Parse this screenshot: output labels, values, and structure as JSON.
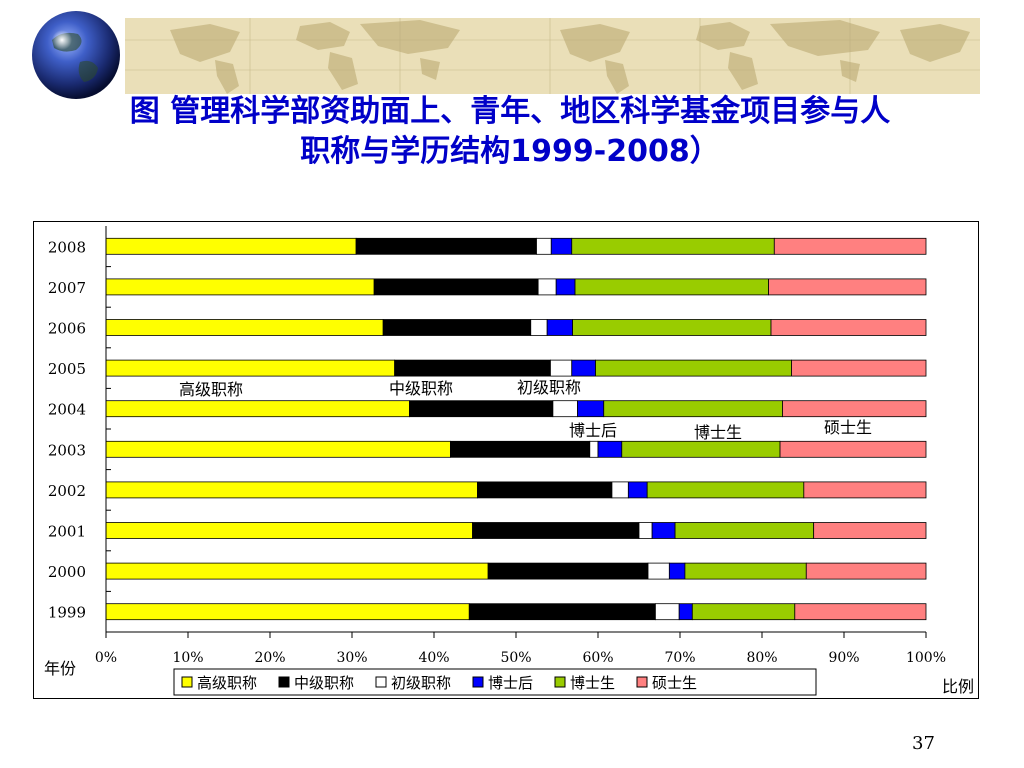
{
  "slide": {
    "title_line1": "图 管理科学部资助面上、青年、地区科学基金项目参与人",
    "title_line2": "职称与学历结构1999-2008）",
    "page_number": "37"
  },
  "colors": {
    "title": "#0000c8",
    "series": [
      "#ffff00",
      "#000000",
      "#ffffff",
      "#0000ff",
      "#99cc00",
      "#ff8080"
    ]
  },
  "chart_data": {
    "type": "bar",
    "orientation": "horizontal",
    "stacked": "percent",
    "categories": [
      "2008",
      "2007",
      "2006",
      "2005",
      "2004",
      "2003",
      "2002",
      "2001",
      "2000",
      "1999"
    ],
    "series": [
      {
        "name": "高级职称",
        "values": [
          30.5,
          32.7,
          33.8,
          35.2,
          37.0,
          42.0,
          45.3,
          44.7,
          46.6,
          44.3
        ]
      },
      {
        "name": "中级职称",
        "values": [
          22.0,
          20.0,
          18.0,
          19.0,
          17.5,
          17.0,
          16.4,
          20.3,
          19.5,
          22.7
        ]
      },
      {
        "name": "初级职称",
        "values": [
          1.8,
          2.2,
          2.0,
          2.6,
          3.0,
          1.0,
          2.0,
          1.6,
          2.6,
          2.9
        ]
      },
      {
        "name": "博士后",
        "values": [
          2.5,
          2.3,
          3.1,
          2.9,
          3.2,
          2.9,
          2.3,
          2.8,
          1.9,
          1.6
        ]
      },
      {
        "name": "博士生",
        "values": [
          24.7,
          23.6,
          24.2,
          23.9,
          21.8,
          19.3,
          19.1,
          16.9,
          14.8,
          12.5
        ]
      },
      {
        "name": "硕士生",
        "values": [
          18.5,
          19.2,
          18.9,
          16.4,
          17.5,
          17.8,
          14.9,
          13.7,
          14.6,
          16.0
        ]
      }
    ],
    "xlabel": "比例",
    "ylabel": "年份",
    "xlim": [
      0,
      100
    ],
    "xticks": [
      "0%",
      "10%",
      "20%",
      "30%",
      "40%",
      "50%",
      "60%",
      "70%",
      "80%",
      "90%",
      "100%"
    ],
    "legend": {
      "position": "bottom"
    },
    "annotations": [
      "高级职称",
      "中级职称",
      "初级职称",
      "博士后",
      "博士生",
      "硕士生"
    ],
    "grid": false
  }
}
